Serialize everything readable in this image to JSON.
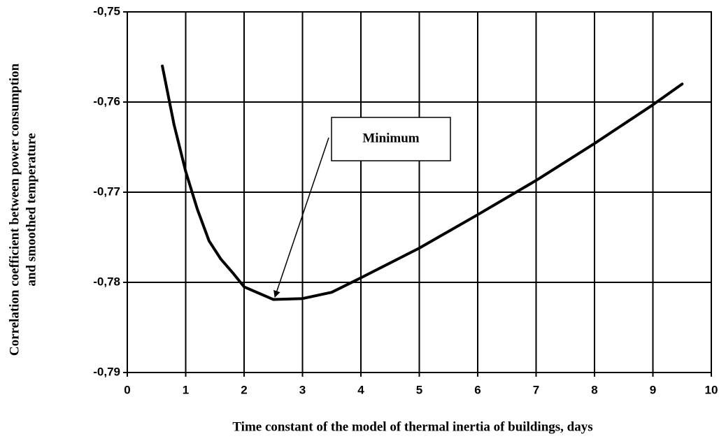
{
  "chart_data": {
    "type": "line",
    "xlabel": "Time constant of the model of thermal inertia of buildings, days",
    "ylabel": [
      "Correlation coefficient between power consumption",
      "and smoothed temperature"
    ],
    "annotation": "Minimum",
    "x": [
      0.6,
      0.8,
      1.0,
      1.2,
      1.4,
      1.6,
      1.8,
      2.0,
      2.5,
      3.0,
      3.5,
      4.0,
      5.0,
      6.0,
      7.0,
      8.0,
      9.0,
      9.5
    ],
    "values": [
      -0.756,
      -0.7625,
      -0.7677,
      -0.7719,
      -0.7754,
      -0.7774,
      -0.7789,
      -0.7805,
      -0.7819,
      -0.7818,
      -0.7811,
      -0.7795,
      -0.7762,
      -0.7725,
      -0.7687,
      -0.7646,
      -0.7603,
      -0.758
    ],
    "color": "#000000",
    "xlim": [
      0,
      10
    ],
    "xticks": [
      0,
      1,
      2,
      3,
      4,
      5,
      6,
      7,
      8,
      9,
      10
    ],
    "ylim": [
      -0.79,
      -0.75
    ],
    "yticks": [
      {
        "value": -0.79,
        "label": "-0,79"
      },
      {
        "value": -0.78,
        "label": "-0,78"
      },
      {
        "value": -0.77,
        "label": "-0,77"
      },
      {
        "value": -0.76,
        "label": "-0,76"
      },
      {
        "value": -0.75,
        "label": "-0,75"
      }
    ],
    "grid": true
  }
}
